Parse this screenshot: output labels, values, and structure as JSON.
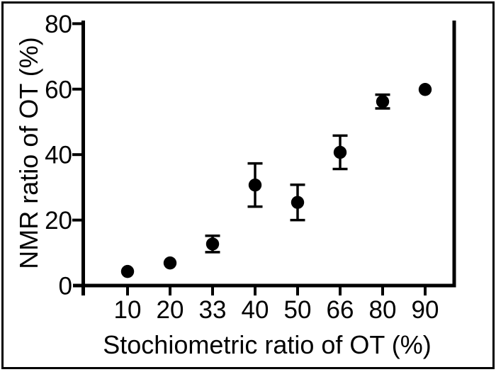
{
  "chart_data": {
    "type": "scatter",
    "title": "",
    "xlabel": "Stochiometric ratio of OT (%)",
    "ylabel": "NMR ratio of OT (%)",
    "categories": [
      "10",
      "20",
      "33",
      "40",
      "50",
      "66",
      "80",
      "90"
    ],
    "series": [
      {
        "name": "NMR ratio of OT",
        "values": [
          4.3,
          6.9,
          12.7,
          30.7,
          25.4,
          40.7,
          56.2,
          59.9
        ],
        "errors": [
          0,
          0,
          2.5,
          6.6,
          5.4,
          5.1,
          2.1,
          0
        ]
      }
    ],
    "ylim": [
      0,
      80
    ],
    "yticks": [
      0,
      20,
      40,
      60,
      80
    ],
    "grid": false,
    "legend": "none",
    "marker": "filled-circle",
    "marker_color": "#000000",
    "axis_color": "#000000",
    "background_color": "#ffffff"
  }
}
